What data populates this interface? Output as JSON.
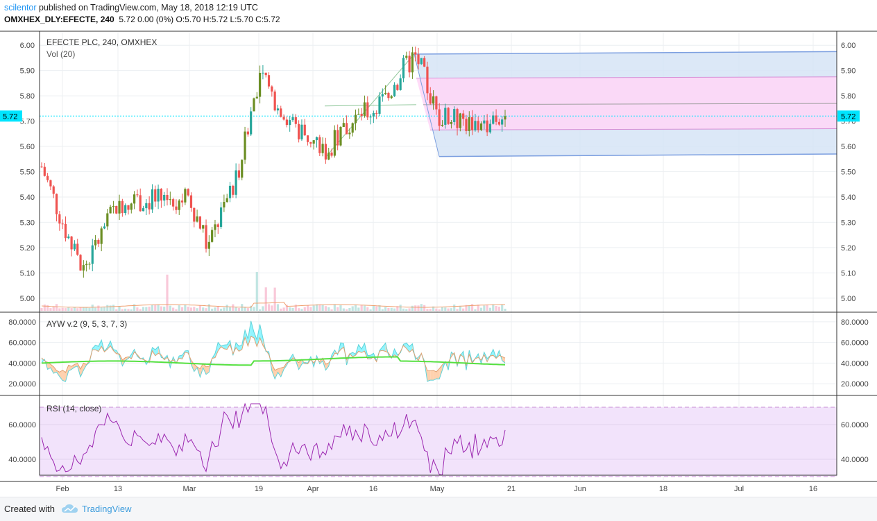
{
  "header": {
    "author": "scilentor",
    "published_text": " published on TradingView.com, May 18, 2018 12:19 UTC",
    "symbol": "OMXHEX_DLY:EFECTE, 240",
    "quote": "5.72 0.00 (0%) O:5.70 H:5.72 L:5.70 C:5.72"
  },
  "footer": {
    "created_with": "Created with",
    "brand": "TradingView"
  },
  "colors": {
    "up": "#26a69a",
    "up_alt": "#6b8e23",
    "down": "#ef5350",
    "price_line": "#00e5ff",
    "fib_blue": "#d6e4f6",
    "fib_pink": "#ffd6f7",
    "rsi_band": "#f2e3fb",
    "rsi_line": "#9c27b0",
    "ayw_green": "#55e040",
    "ayw_cyan": "#7ff3ff",
    "ayw_orange": "#ffc9a0"
  },
  "chart_data": [
    {
      "type": "candlestick",
      "title": "EFECTE PLC, 240, OMXHEX",
      "ylim": [
        4.95,
        6.05
      ],
      "y_ticks": [
        "6.00",
        "5.90",
        "5.80",
        "5.70",
        "5.60",
        "5.50",
        "5.40",
        "5.30",
        "5.20",
        "5.10",
        "5.00"
      ],
      "last_price_label": "5.72",
      "last_price": 5.72,
      "candle_count": 156,
      "key_points": [
        {
          "x": "Jan 29",
          "close": 5.52
        },
        {
          "x": "Feb 7",
          "close": 5.1
        },
        {
          "x": "Feb 13",
          "close": 5.38
        },
        {
          "x": "Mar 1",
          "close": 5.4
        },
        {
          "x": "Mar 10",
          "close": 5.2
        },
        {
          "x": "Mar 16",
          "close": 5.5
        },
        {
          "x": "Mar 19",
          "close": 5.88
        },
        {
          "x": "Mar 26",
          "close": 5.68
        },
        {
          "x": "Apr 4",
          "close": 5.58
        },
        {
          "x": "Apr 11",
          "close": 5.7
        },
        {
          "x": "Apr 19",
          "close": 5.78
        },
        {
          "x": "Apr 23",
          "close": 5.9
        },
        {
          "x": "Apr 26",
          "close": 5.96
        },
        {
          "x": "May 1",
          "close": 5.72
        },
        {
          "x": "May 14",
          "close": 5.68
        },
        {
          "x": "May 18",
          "close": 5.72
        }
      ]
    },
    {
      "type": "bar",
      "title": "Vol (20)",
      "note": "volume histogram with moving-average line"
    },
    {
      "type": "area",
      "title": "AYW v.2 (9, 5, 3, 7, 3)",
      "ylim": [
        10,
        88
      ],
      "y_ticks": [
        "80.0000",
        "60.0000",
        "40.0000",
        "20.0000"
      ]
    },
    {
      "type": "line",
      "title": "RSI (14, close)",
      "ylim": [
        28,
        76
      ],
      "y_ticks": [
        "60.0000",
        "40.0000"
      ],
      "band": [
        30,
        70
      ]
    }
  ],
  "x_axis": {
    "labels": [
      "Feb",
      "13",
      "Mar",
      "19",
      "Apr",
      "16",
      "May",
      "21",
      "Jun",
      "18",
      "Jul",
      "16"
    ]
  }
}
